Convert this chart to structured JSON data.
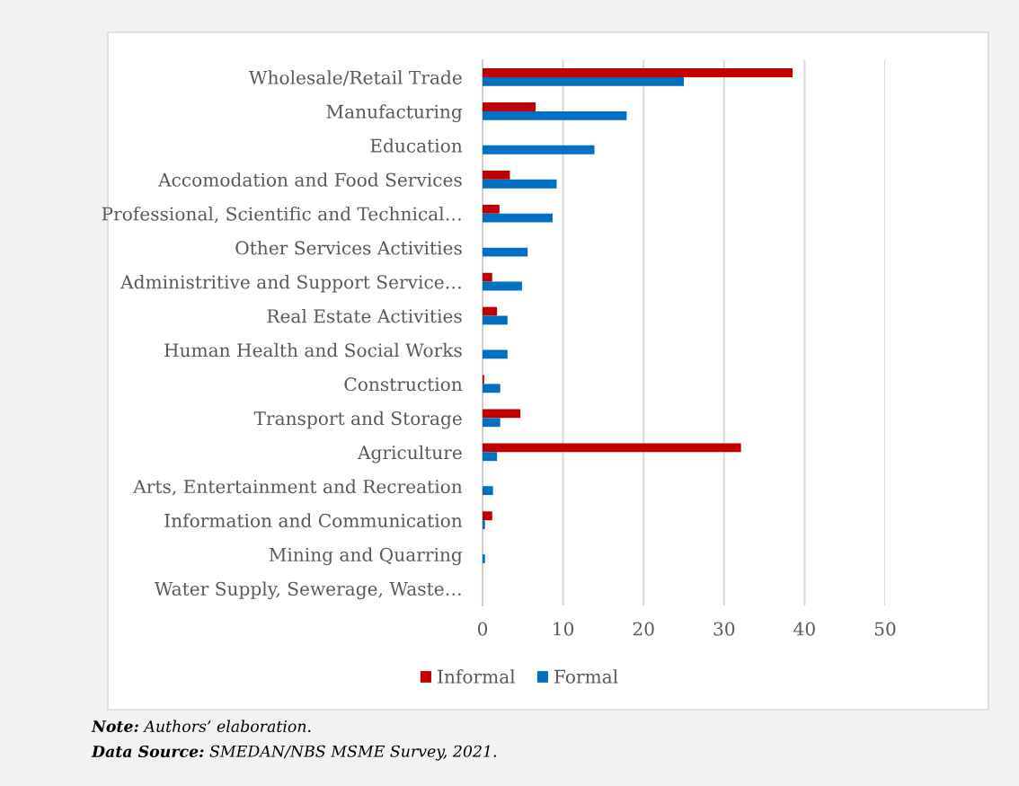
{
  "chart_data": {
    "type": "bar",
    "orientation": "horizontal",
    "categories": [
      "Wholesale/Retail Trade",
      "Manufacturing",
      "Education",
      "Accomodation and Food Services",
      "Professional, Scientific and Technical…",
      "Other Services Activities",
      "Administritive and Support Service…",
      "Real Estate Activities",
      "Human Health and Social Works",
      "Construction",
      "Transport and Storage",
      "Agriculture",
      "Arts, Entertainment and Recreation",
      "Information and Communication",
      "Mining and Quarring",
      "Water Supply, Sewerage, Waste…"
    ],
    "series": [
      {
        "name": "Informal",
        "color": "#c00000",
        "values": [
          38.5,
          6.6,
          null,
          3.4,
          2.1,
          null,
          1.2,
          1.8,
          null,
          0.2,
          4.7,
          32.1,
          null,
          1.2,
          null,
          null
        ]
      },
      {
        "name": "Formal",
        "color": "#0070c0",
        "values": [
          25.0,
          17.9,
          13.9,
          9.2,
          8.7,
          5.6,
          4.9,
          3.1,
          3.1,
          2.2,
          2.2,
          1.8,
          1.3,
          0.3,
          0.3,
          null
        ]
      }
    ],
    "xlim": [
      0,
      50
    ],
    "xticks": [
      0,
      10,
      20,
      30,
      40,
      50
    ],
    "grid": "x",
    "legend": "bottom",
    "annotations": [
      "Note: Authors’ elaboration.",
      "Data Source: SMEDAN/NBS MSME Survey, 2021."
    ]
  }
}
